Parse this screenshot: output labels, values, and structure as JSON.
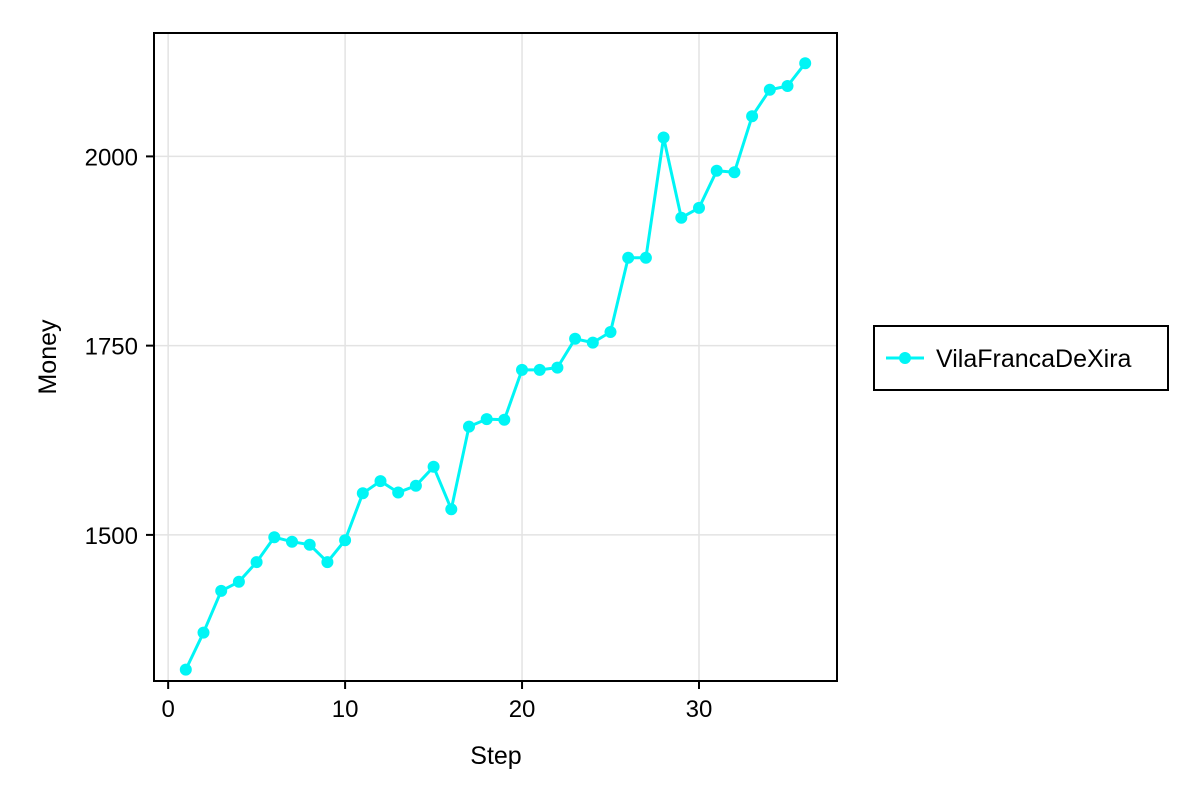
{
  "chart_data": {
    "type": "line",
    "title": "",
    "xlabel": "Step",
    "ylabel": "Money",
    "xlim": [
      -0.8,
      37.8
    ],
    "ylim": [
      1307,
      2163
    ],
    "xticks": [
      0,
      10,
      20,
      30
    ],
    "yticks": [
      1500,
      1750,
      2000
    ],
    "grid": true,
    "legend_position": "right",
    "series": [
      {
        "name": "VilaFrancaDeXira",
        "color": "#00f5f5",
        "markers": true,
        "x": [
          1,
          2,
          3,
          4,
          5,
          6,
          7,
          8,
          9,
          10,
          11,
          12,
          13,
          14,
          15,
          16,
          17,
          18,
          19,
          20,
          21,
          22,
          23,
          24,
          25,
          26,
          27,
          28,
          29,
          30,
          31,
          32,
          33,
          34,
          35,
          36
        ],
        "y": [
          1322,
          1371,
          1426,
          1438,
          1464,
          1497,
          1491,
          1487,
          1464,
          1493,
          1555,
          1571,
          1556,
          1565,
          1590,
          1534,
          1643,
          1653,
          1652,
          1718,
          1718,
          1721,
          1759,
          1754,
          1768,
          1866,
          1866,
          2025,
          1919,
          1932,
          1981,
          1979,
          2053,
          2088,
          2093,
          2123
        ]
      }
    ]
  }
}
